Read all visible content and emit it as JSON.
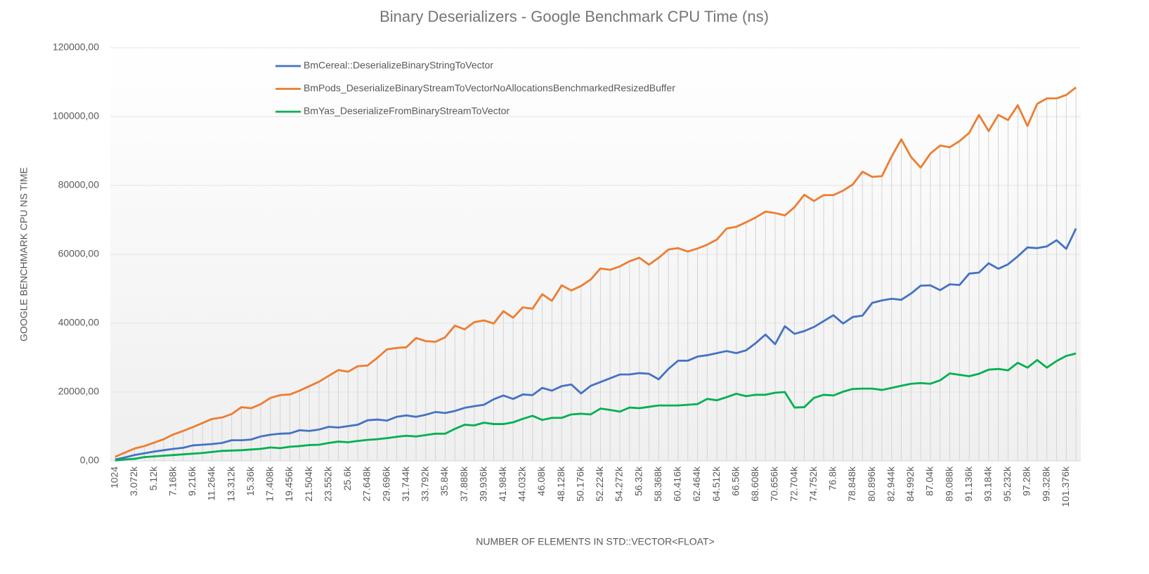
{
  "chart_data": {
    "type": "line",
    "title": "Binary Deserializers - Google Benchmark CPU Time (ns)",
    "x_label": "NUMBER OF ELEMENTS IN STD::VECTOR<FLOAT>",
    "y_label": "GOOGLE BENCHMARK CPU NS TIME",
    "categories": [
      "1024",
      null,
      "3.072k",
      null,
      "5.12k",
      null,
      "7.168k",
      null,
      "9.216k",
      null,
      "11.264k",
      null,
      "13.312k",
      null,
      "15.36k",
      null,
      "17.408k",
      null,
      "19.456k",
      null,
      "21.504k",
      null,
      "23.552k",
      null,
      "25.6k",
      null,
      "27.648k",
      null,
      "29.696k",
      null,
      "31.744k",
      null,
      "33.792k",
      null,
      "35.84k",
      null,
      "37.888k",
      null,
      "39.936k",
      null,
      "41.984k",
      null,
      "44.032k",
      null,
      "46.08k",
      null,
      "48.128k",
      null,
      "50.176k",
      null,
      "52.224k",
      null,
      "54.272k",
      null,
      "56.32k",
      null,
      "58.368k",
      null,
      "60.416k",
      null,
      "62.464k",
      null,
      "64.512k",
      null,
      "66.56k",
      null,
      "68.608k",
      null,
      "70.656k",
      null,
      "72.704k",
      null,
      "74.752k",
      null,
      "76.8k",
      null,
      "78.848k",
      null,
      "80.896k",
      null,
      "82.944k",
      null,
      "84.992k",
      null,
      "87.04k",
      null,
      "89.088k",
      null,
      "91.136k",
      null,
      "93.184k",
      null,
      "95.232k",
      null,
      "97.28k",
      null,
      "99.328k",
      null,
      "101.376k",
      null
    ],
    "series": [
      {
        "name": "BmCereal::DeserializeBinaryStringToVector",
        "color": "#4472c4",
        "values": [
          400,
          1000,
          1700,
          2200,
          2700,
          3100,
          3500,
          3800,
          4500,
          4700,
          4900,
          5200,
          6000,
          6000,
          6200,
          7100,
          7600,
          7900,
          8000,
          8900,
          8700,
          9100,
          9900,
          9700,
          10100,
          10500,
          11800,
          12000,
          11700,
          12800,
          13200,
          12800,
          13400,
          14200,
          13900,
          14500,
          15400,
          15900,
          16300,
          17900,
          19000,
          18000,
          19300,
          19100,
          21200,
          20400,
          21700,
          22200,
          19600,
          21800,
          22900,
          24000,
          25100,
          25100,
          25500,
          25300,
          23700,
          26700,
          29100,
          29100,
          30300,
          30700,
          31300,
          31900,
          31300,
          32100,
          34200,
          36700,
          33900,
          39100,
          36900,
          37700,
          38900,
          40600,
          42300,
          39900,
          41800,
          42200,
          45900,
          46600,
          47100,
          46800,
          48600,
          50900,
          51000,
          49600,
          51300,
          51100,
          54400,
          54700,
          57400,
          55800,
          57100,
          59400,
          62000,
          61800,
          62300,
          64100,
          61600,
          67500
        ]
      },
      {
        "name": "BmPods_DeserializeBinaryStreamToVectorNoAllocationsBenchmarkedResizedBuffer",
        "color": "#ed7d31",
        "values": [
          1200,
          2400,
          3600,
          4300,
          5300,
          6300,
          7700,
          8700,
          9800,
          11000,
          12200,
          12600,
          13600,
          15600,
          15300,
          16500,
          18300,
          19100,
          19300,
          20400,
          21700,
          23000,
          24700,
          26400,
          25900,
          27500,
          27700,
          29900,
          32400,
          32800,
          33000,
          35700,
          34800,
          34600,
          35900,
          39300,
          38200,
          40300,
          40800,
          39900,
          43500,
          41600,
          44600,
          44200,
          48400,
          46500,
          51000,
          49500,
          50800,
          52700,
          55900,
          55500,
          56500,
          58000,
          59000,
          57000,
          59000,
          61400,
          61800,
          60800,
          61700,
          62800,
          64300,
          67500,
          68000,
          69300,
          70700,
          72400,
          72000,
          71300,
          73700,
          77300,
          75500,
          77200,
          77200,
          78500,
          80300,
          84000,
          82500,
          82700,
          88400,
          93400,
          88300,
          85200,
          89300,
          91600,
          91100,
          92900,
          95300,
          100500,
          95800,
          100500,
          99000,
          103300,
          97300,
          103700,
          105300,
          105300,
          106300,
          108500
        ]
      },
      {
        "name": "BmYas_DeserializeFromBinaryStreamToVector",
        "color": "#00b050",
        "values": [
          100,
          400,
          600,
          1100,
          1300,
          1500,
          1700,
          1900,
          2100,
          2300,
          2600,
          2900,
          3000,
          3100,
          3300,
          3500,
          3900,
          3700,
          4100,
          4300,
          4600,
          4700,
          5200,
          5600,
          5400,
          5800,
          6100,
          6300,
          6600,
          7000,
          7300,
          7100,
          7500,
          7900,
          7900,
          9300,
          10500,
          10300,
          11100,
          10700,
          10700,
          11200,
          12200,
          13100,
          11900,
          12500,
          12500,
          13500,
          13700,
          13500,
          15200,
          14800,
          14300,
          15500,
          15300,
          15700,
          16100,
          16100,
          16100,
          16300,
          16500,
          18000,
          17600,
          18500,
          19500,
          18800,
          19200,
          19200,
          19800,
          20000,
          15500,
          15600,
          18300,
          19200,
          19000,
          20100,
          20900,
          21000,
          21000,
          20600,
          21200,
          21800,
          22400,
          22600,
          22400,
          23400,
          25400,
          25000,
          24600,
          25300,
          26500,
          26700,
          26300,
          28500,
          27100,
          29300,
          27100,
          29000,
          30500,
          31200
        ]
      }
    ],
    "ylim": [
      0,
      120000
    ],
    "yticks": [
      {
        "value": 0,
        "label": "0,00"
      },
      {
        "value": 20000,
        "label": "20000,00"
      },
      {
        "value": 40000,
        "label": "40000,00"
      },
      {
        "value": 60000,
        "label": "60000,00"
      },
      {
        "value": 80000,
        "label": "80000,00"
      },
      {
        "value": 100000,
        "label": "100000,00"
      },
      {
        "value": 120000,
        "label": "120000,00"
      }
    ],
    "grid": true,
    "drop_lines": true,
    "legend": "upper left"
  }
}
